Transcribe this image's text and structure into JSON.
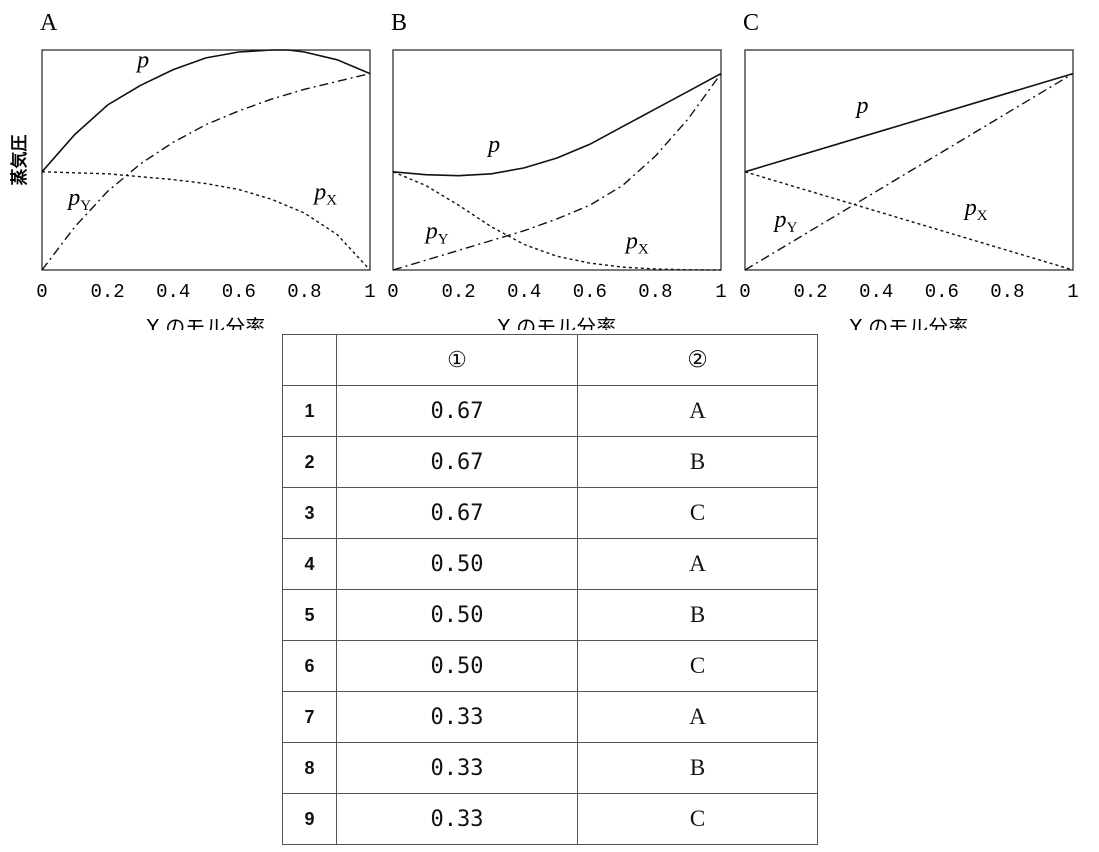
{
  "chart_data": [
    {
      "type": "line",
      "panel_label": "A",
      "ylabel": "蒸気圧",
      "xlabel": "Y のモル分率",
      "xlim": [
        0,
        1
      ],
      "ylim": [
        0,
        1.12
      ],
      "xticks": [
        "0",
        "0.2",
        "0.4",
        "0.6",
        "0.8",
        "1"
      ],
      "series": [
        {
          "name": "p",
          "style": "solid",
          "x": [
            0,
            0.1,
            0.2,
            0.3,
            0.4,
            0.5,
            0.6,
            0.7,
            0.75,
            0.8,
            0.9,
            1.0
          ],
          "y": [
            0.5,
            0.69,
            0.84,
            0.94,
            1.02,
            1.08,
            1.11,
            1.12,
            1.12,
            1.11,
            1.07,
            1.0
          ]
        },
        {
          "name": "pY",
          "style": "dashdot",
          "x": [
            0,
            0.1,
            0.2,
            0.3,
            0.4,
            0.5,
            0.6,
            0.7,
            0.8,
            0.9,
            1.0
          ],
          "y": [
            0,
            0.22,
            0.4,
            0.54,
            0.65,
            0.74,
            0.81,
            0.87,
            0.92,
            0.96,
            1.0
          ]
        },
        {
          "name": "pX",
          "style": "dotted",
          "x": [
            0,
            0.1,
            0.2,
            0.3,
            0.4,
            0.5,
            0.6,
            0.7,
            0.8,
            0.9,
            1.0
          ],
          "y": [
            0.5,
            0.495,
            0.49,
            0.475,
            0.46,
            0.44,
            0.41,
            0.36,
            0.29,
            0.18,
            0
          ]
        }
      ],
      "labels": [
        {
          "text": "p",
          "x": 0.29,
          "y": 1.03
        },
        {
          "text": "pY",
          "x": 0.08,
          "y": 0.33
        },
        {
          "text": "pX",
          "x": 0.83,
          "y": 0.36
        }
      ]
    },
    {
      "type": "line",
      "panel_label": "B",
      "xlabel": "Y のモル分率",
      "xlim": [
        0,
        1
      ],
      "ylim": [
        0,
        1.12
      ],
      "xticks": [
        "0",
        "0.2",
        "0.4",
        "0.6",
        "0.8",
        "1"
      ],
      "series": [
        {
          "name": "p",
          "style": "solid",
          "x": [
            0,
            0.1,
            0.2,
            0.3,
            0.4,
            0.5,
            0.6,
            0.7,
            0.8,
            0.9,
            1.0
          ],
          "y": [
            0.5,
            0.485,
            0.48,
            0.49,
            0.52,
            0.57,
            0.64,
            0.73,
            0.82,
            0.91,
            1.0
          ]
        },
        {
          "name": "pY",
          "style": "dashdot",
          "x": [
            0,
            0.1,
            0.2,
            0.3,
            0.4,
            0.5,
            0.6,
            0.7,
            0.8,
            0.9,
            1.0
          ],
          "y": [
            0,
            0.05,
            0.1,
            0.15,
            0.2,
            0.26,
            0.33,
            0.43,
            0.58,
            0.77,
            1.0
          ]
        },
        {
          "name": "pX",
          "style": "dotted",
          "x": [
            0,
            0.1,
            0.2,
            0.3,
            0.4,
            0.5,
            0.6,
            0.7,
            0.8,
            0.9,
            1.0
          ],
          "y": [
            0.5,
            0.43,
            0.33,
            0.22,
            0.13,
            0.07,
            0.035,
            0.015,
            0.005,
            0.001,
            0
          ]
        }
      ],
      "labels": [
        {
          "text": "p",
          "x": 0.29,
          "y": 0.6
        },
        {
          "text": "pY",
          "x": 0.1,
          "y": 0.16
        },
        {
          "text": "pX",
          "x": 0.71,
          "y": 0.11
        }
      ]
    },
    {
      "type": "line",
      "panel_label": "C",
      "xlabel": "Y のモル分率",
      "xlim": [
        0,
        1
      ],
      "ylim": [
        0,
        1.12
      ],
      "xticks": [
        "0",
        "0.2",
        "0.4",
        "0.6",
        "0.8",
        "1"
      ],
      "series": [
        {
          "name": "p",
          "style": "solid",
          "x": [
            0,
            1
          ],
          "y": [
            0.5,
            1.0
          ]
        },
        {
          "name": "pY",
          "style": "dashdot",
          "x": [
            0,
            1
          ],
          "y": [
            0,
            1.0
          ]
        },
        {
          "name": "pX",
          "style": "dotted",
          "x": [
            0,
            1
          ],
          "y": [
            0.5,
            0
          ]
        }
      ],
      "labels": [
        {
          "text": "p",
          "x": 0.34,
          "y": 0.8
        },
        {
          "text": "pY",
          "x": 0.09,
          "y": 0.22
        },
        {
          "text": "pX",
          "x": 0.67,
          "y": 0.28
        }
      ]
    }
  ],
  "table": {
    "headers": [
      "",
      "①",
      "②"
    ],
    "rows": [
      {
        "no": "1",
        "v1": "0.67",
        "v2": "A"
      },
      {
        "no": "2",
        "v1": "0.67",
        "v2": "B"
      },
      {
        "no": "3",
        "v1": "0.67",
        "v2": "C"
      },
      {
        "no": "4",
        "v1": "0.50",
        "v2": "A"
      },
      {
        "no": "5",
        "v1": "0.50",
        "v2": "B"
      },
      {
        "no": "6",
        "v1": "0.50",
        "v2": "C"
      },
      {
        "no": "7",
        "v1": "0.33",
        "v2": "A"
      },
      {
        "no": "8",
        "v1": "0.33",
        "v2": "B"
      },
      {
        "no": "9",
        "v1": "0.33",
        "v2": "C"
      }
    ]
  }
}
